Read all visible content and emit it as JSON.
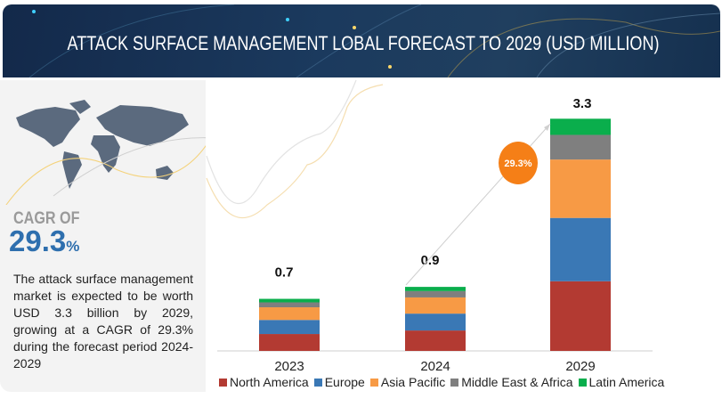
{
  "header": {
    "title": "ATTACK SURFACE MANAGEMENT LOBAL FORECAST TO 2029 (USD MILLION)"
  },
  "left_panel": {
    "cagr_label": "CAGR OF",
    "cagr_value": "29.3",
    "cagr_unit": "%",
    "description": "The attack surface management market is expected to be worth USD 3.3 billion by 2029, growing at a CAGR of 29.3% during the forecast period 2024-2029"
  },
  "chart_data": {
    "type": "bar",
    "stacked": true,
    "title": "ATTACK SURFACE MANAGEMENT LOBAL FORECAST TO 2029 (USD MILLION)",
    "categories": [
      "2023",
      "2024",
      "2029"
    ],
    "totals_labels": [
      "0.7",
      "0.9",
      "3.3"
    ],
    "series": [
      {
        "name": "North America",
        "color": "#b33a32",
        "values": [
          0.24,
          0.29,
          0.99
        ]
      },
      {
        "name": "Europe",
        "color": "#3a78b5",
        "values": [
          0.2,
          0.24,
          0.9
        ]
      },
      {
        "name": "Asia Pacific",
        "color": "#f79a45",
        "values": [
          0.18,
          0.23,
          0.83
        ]
      },
      {
        "name": "Middle East & Africa",
        "color": "#7f7f7f",
        "values": [
          0.07,
          0.09,
          0.35
        ]
      },
      {
        "name": "Latin America",
        "color": "#0aae4c",
        "values": [
          0.05,
          0.06,
          0.23
        ]
      }
    ],
    "annotation": {
      "text": "29.3%",
      "color": "#f57f17"
    },
    "ylim": [
      0,
      3.4
    ],
    "grid": false,
    "legend": "bottom"
  }
}
